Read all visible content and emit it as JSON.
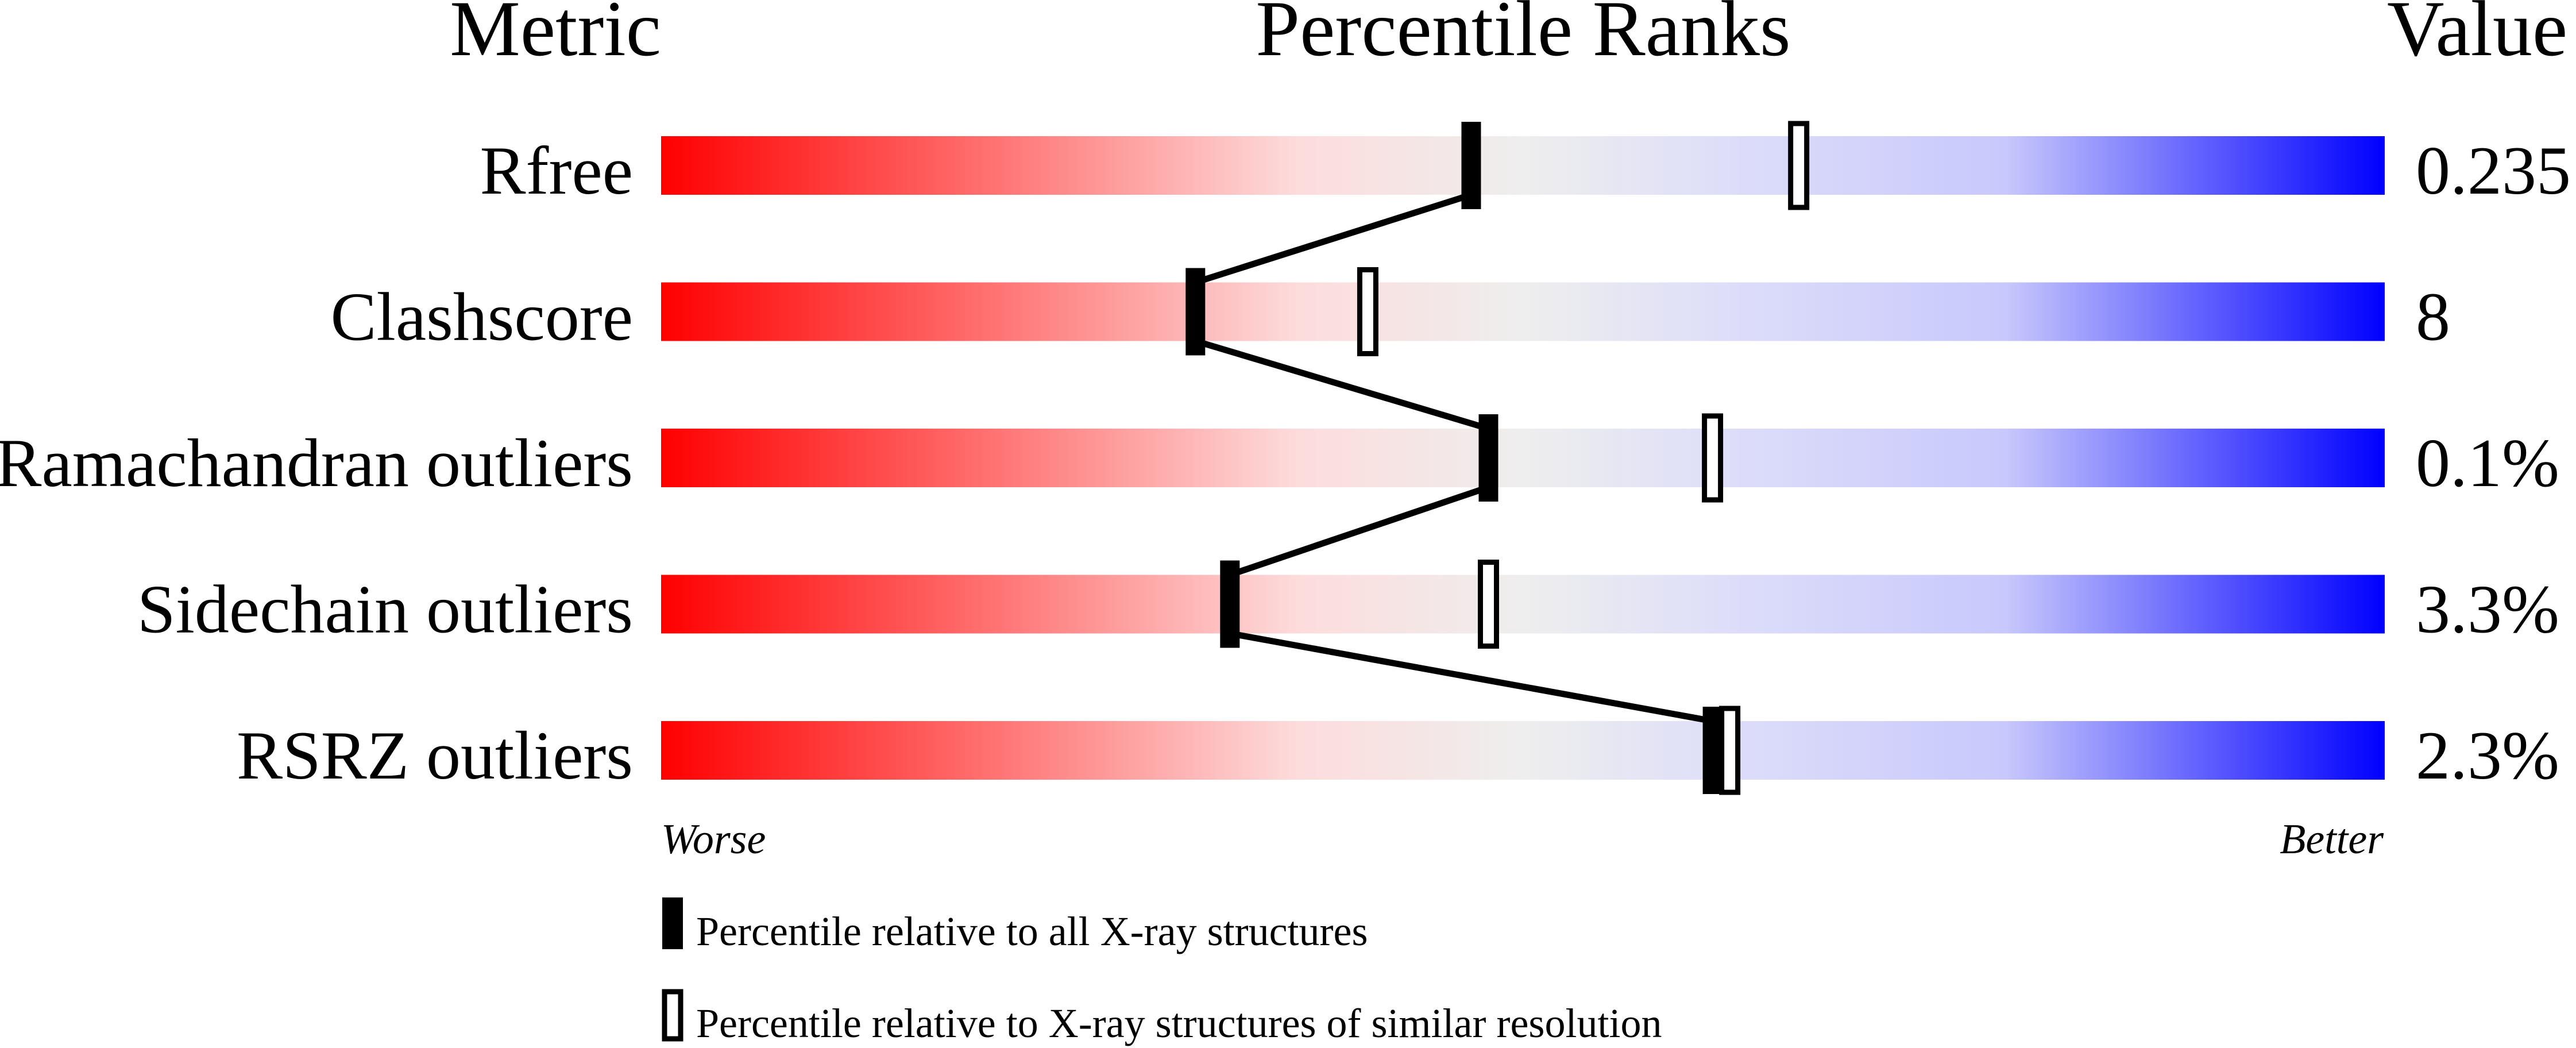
{
  "chart_data": {
    "type": "percentile-slider",
    "headers": {
      "metric": "Metric",
      "ranks": "Percentile Ranks",
      "value": "Value"
    },
    "axis": {
      "min": 0,
      "max": 100,
      "left_label": "Worse",
      "right_label": "Better"
    },
    "gradient_colors": [
      "#ff0000",
      "#ff7777",
      "#fddcdc",
      "#eeeeee",
      "#dcdcfa",
      "#c8c8fc",
      "#0000ff"
    ],
    "rows": [
      {
        "metric": "Rfree",
        "value": "0.235",
        "percentile_all": 47,
        "percentile_similar": 66
      },
      {
        "metric": "Clashscore",
        "value": "8",
        "percentile_all": 31,
        "percentile_similar": 41
      },
      {
        "metric": "Ramachandran outliers",
        "value": "0.1%",
        "percentile_all": 48,
        "percentile_similar": 61
      },
      {
        "metric": "Sidechain outliers",
        "value": "3.3%",
        "percentile_all": 33,
        "percentile_similar": 48
      },
      {
        "metric": "RSRZ outliers",
        "value": "2.3%",
        "percentile_all": 61,
        "percentile_similar": 62
      }
    ],
    "legend": {
      "all": "Percentile relative to all X-ray structures",
      "similar": "Percentile relative to X-ray structures of similar resolution"
    }
  }
}
